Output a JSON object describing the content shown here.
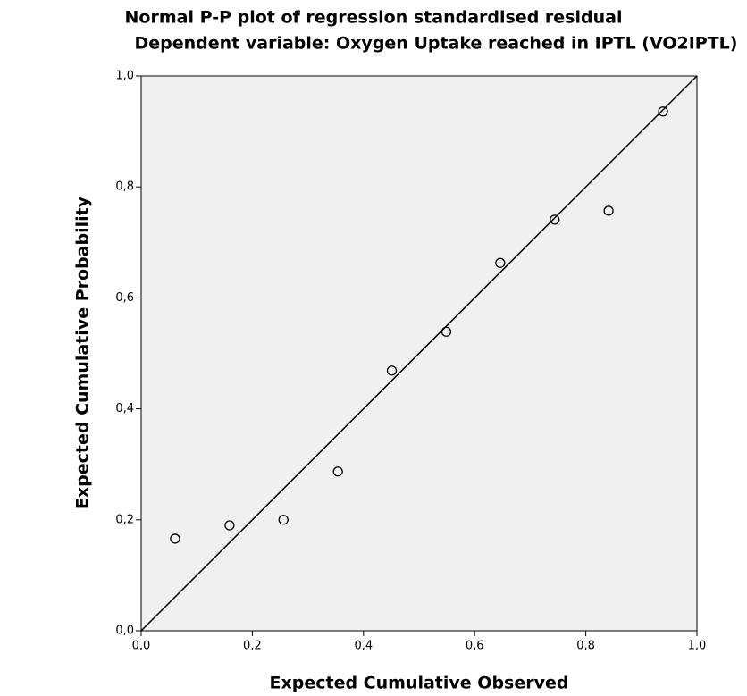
{
  "chart_data": {
    "type": "scatter",
    "title": "Normal P-P plot of regression standardised residual",
    "subtitle": "Dependent variable: Oxygen Uptake reached in IPTL (VO2IPTL)",
    "x_label": "Expected Cumulative Observed",
    "y_label": "Expected Cumulative Probability",
    "x": [
      0.061,
      0.159,
      0.256,
      0.354,
      0.451,
      0.549,
      0.646,
      0.744,
      0.841,
      0.939
    ],
    "values": [
      0.166,
      0.19,
      0.2,
      0.287,
      0.469,
      0.539,
      0.663,
      0.741,
      0.757,
      0.936
    ],
    "color": "#000000",
    "background": "#f0f0f0",
    "xlim": [
      0,
      1
    ],
    "ylim": [
      0,
      1
    ],
    "xticks": [
      {
        "value": 0,
        "label": "0,0"
      },
      {
        "value": 0.2,
        "label": "0,2"
      },
      {
        "value": 0.4,
        "label": "0,4"
      },
      {
        "value": 0.6,
        "label": "0,6"
      },
      {
        "value": 0.8,
        "label": "0,8"
      },
      {
        "value": 1,
        "label": "1,0"
      }
    ],
    "yticks": [
      {
        "value": 0,
        "label": "0,0"
      },
      {
        "value": 0.2,
        "label": "0,2"
      },
      {
        "value": 0.4,
        "label": "0,4"
      },
      {
        "value": 0.6,
        "label": "0,6"
      },
      {
        "value": 0.8,
        "label": "0,8"
      },
      {
        "value": 1,
        "label": "1,0"
      }
    ],
    "reference_line": true
  }
}
